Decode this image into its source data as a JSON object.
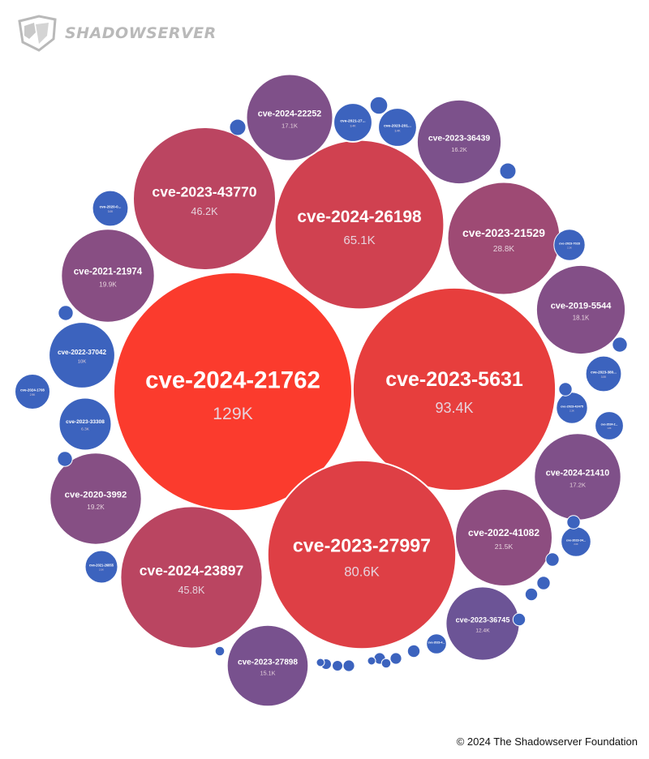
{
  "brand": {
    "name": "SHADOWSERVER",
    "logo_icon": "shadowserver-shield-icon"
  },
  "footer": {
    "copyright": "© 2024 The Shadowserver Foundation"
  },
  "colors": {
    "high": "#fb3b2d",
    "mid": "#b84563",
    "low": "#6a5497",
    "small": "#3c63be",
    "text_light": "#ffffff",
    "text_muted": "#e6d2dc",
    "logo_gray": "#b9b9b9"
  },
  "chart_data": {
    "type": "bubble",
    "series": [
      {
        "name": "cve-2024-21762",
        "value": 129000,
        "value_label": "129K"
      },
      {
        "name": "cve-2023-5631",
        "value": 93400,
        "value_label": "93.4K"
      },
      {
        "name": "cve-2023-27997",
        "value": 80600,
        "value_label": "80.6K"
      },
      {
        "name": "cve-2024-26198",
        "value": 65100,
        "value_label": "65.1K"
      },
      {
        "name": "cve-2023-43770",
        "value": 46200,
        "value_label": "46.2K"
      },
      {
        "name": "cve-2024-23897",
        "value": 45800,
        "value_label": "45.8K"
      },
      {
        "name": "cve-2023-21529",
        "value": 28800,
        "value_label": "28.8K"
      },
      {
        "name": "cve-2022-41082",
        "value": 21500,
        "value_label": "21.5K"
      },
      {
        "name": "cve-2021-21974",
        "value": 19900,
        "value_label": "19.9K"
      },
      {
        "name": "cve-2020-3992",
        "value": 19200,
        "value_label": "19.2K"
      },
      {
        "name": "cve-2019-5544",
        "value": 18100,
        "value_label": "18.1K"
      },
      {
        "name": "cve-2024-21410",
        "value": 17200,
        "value_label": "17.2K"
      },
      {
        "name": "cve-2024-22252",
        "value": 17100,
        "value_label": "17.1K"
      },
      {
        "name": "cve-2023-36439",
        "value": 16200,
        "value_label": "16.2K"
      },
      {
        "name": "cve-2023-27898",
        "value": 15100,
        "value_label": "15.1K"
      },
      {
        "name": "cve-2023-36745",
        "value": 12400,
        "value_label": "12.4K"
      },
      {
        "name": "cve-2022-37042",
        "value": 10000,
        "value_label": "10K"
      },
      {
        "name": "cve-2023-33308",
        "value": 6300,
        "value_label": "6.3K"
      },
      {
        "name": "cve-2024-1708",
        "value": 2900,
        "value_label": "2.9K"
      },
      {
        "name": "cve-2021-27...",
        "value": 3400,
        "value_label": "3.4K"
      },
      {
        "name": "cve-2023-201...",
        "value": 3400,
        "value_label": "3.4K"
      },
      {
        "name": "cve-2020-0...",
        "value": 3000,
        "value_label": "3.0K"
      },
      {
        "name": "cve-2021-26855",
        "value": 2500,
        "value_label": "2.5K"
      },
      {
        "name": "cve-2023-7028",
        "value": 2200,
        "value_label": "2.2K"
      },
      {
        "name": "cve-2023-380...",
        "value": 3000,
        "value_label": "3.0K"
      },
      {
        "name": "cve-2023-42475",
        "value": 2200,
        "value_label": "2.2K"
      },
      {
        "name": "cve-2023-34...",
        "value": 2000,
        "value_label": "2.0K"
      },
      {
        "name": "cve-2024-2...",
        "value": 1800,
        "value_label": "1.8K"
      },
      {
        "name": "cve-2023-4...",
        "value": 900,
        "value_label": ""
      },
      {
        "name": "",
        "value": 700,
        "value_label": ""
      },
      {
        "name": "",
        "value": 600,
        "value_label": ""
      },
      {
        "name": "",
        "value": 600,
        "value_label": ""
      },
      {
        "name": "",
        "value": 500,
        "value_label": ""
      },
      {
        "name": "",
        "value": 500,
        "value_label": ""
      },
      {
        "name": "",
        "value": 500,
        "value_label": ""
      },
      {
        "name": "",
        "value": 400,
        "value_label": ""
      },
      {
        "name": "",
        "value": 400,
        "value_label": ""
      },
      {
        "name": "",
        "value": 400,
        "value_label": ""
      },
      {
        "name": "",
        "value": 400,
        "value_label": ""
      },
      {
        "name": "",
        "value": 350,
        "value_label": ""
      },
      {
        "name": "",
        "value": 350,
        "value_label": ""
      },
      {
        "name": "",
        "value": 350,
        "value_label": ""
      },
      {
        "name": "",
        "value": 300,
        "value_label": ""
      },
      {
        "name": "",
        "value": 300,
        "value_label": ""
      },
      {
        "name": "",
        "value": 300,
        "value_label": ""
      },
      {
        "name": "",
        "value": 250,
        "value_label": ""
      },
      {
        "name": "",
        "value": 250,
        "value_label": ""
      },
      {
        "name": "",
        "value": 200,
        "value_label": ""
      },
      {
        "name": "",
        "value": 200,
        "value_label": ""
      },
      {
        "name": "",
        "value": 150,
        "value_label": ""
      },
      {
        "name": "",
        "value": 150,
        "value_label": ""
      }
    ]
  }
}
